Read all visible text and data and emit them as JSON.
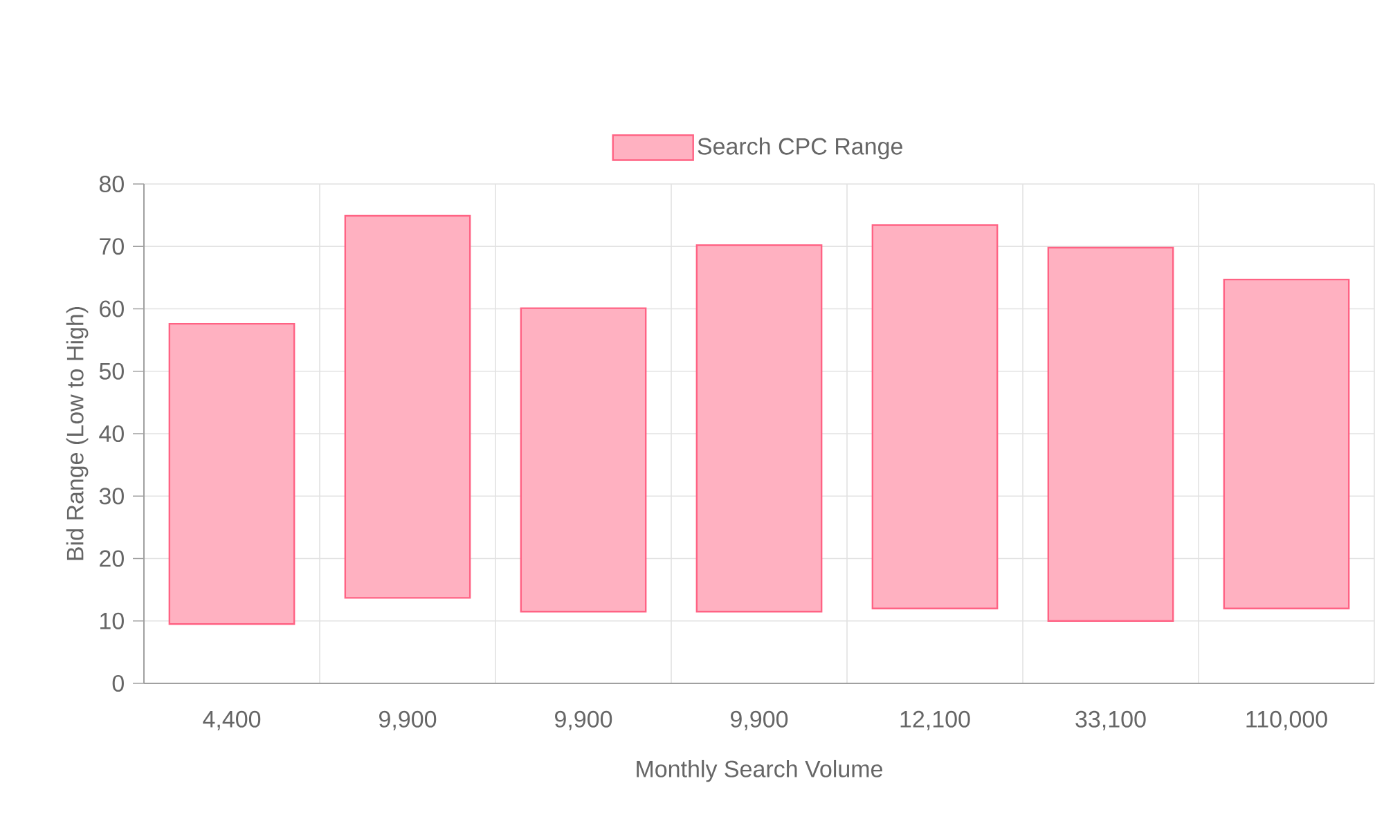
{
  "chart_data": {
    "type": "bar",
    "xlabel": "Monthly Search Volume",
    "ylabel": "Bid Range (Low to High)",
    "categories": [
      "4,400",
      "9,900",
      "9,900",
      "9,900",
      "12,100",
      "33,100",
      "110,000"
    ],
    "series": [
      {
        "name": "Search CPC Range",
        "color": "#ff6384",
        "values": [
          48.1,
          61.2,
          48.6,
          58.7,
          61.4,
          59.8,
          52.7
        ],
        "base": [
          9.5,
          13.7,
          11.5,
          11.5,
          12.0,
          10.0,
          12.0
        ]
      }
    ],
    "ylim": [
      0,
      80
    ],
    "yticks": [
      0,
      10,
      20,
      30,
      40,
      50,
      60,
      70,
      80
    ],
    "grid": true,
    "legend": "top"
  }
}
